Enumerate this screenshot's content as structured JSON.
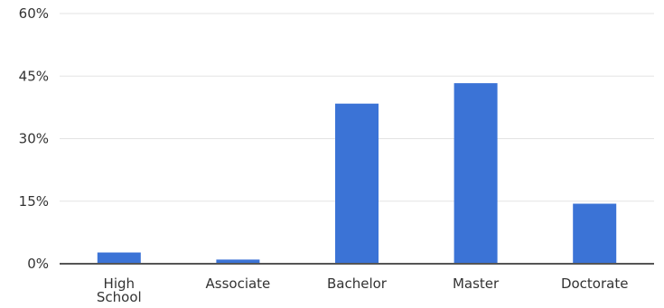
{
  "chart_data": {
    "type": "bar",
    "title": "",
    "xlabel": "",
    "ylabel": "",
    "categories": [
      [
        "High",
        "School"
      ],
      [
        "Associate"
      ],
      [
        "Bachelor"
      ],
      [
        "Master"
      ],
      [
        "Doctorate"
      ]
    ],
    "values": [
      2.7,
      1.0,
      38.4,
      43.3,
      14.4
    ],
    "ylim": [
      0,
      60
    ],
    "yticks": [
      "0%",
      "15%",
      "30%",
      "45%",
      "60%"
    ],
    "ytick_values": [
      0,
      15,
      30,
      45,
      60
    ],
    "grid": true,
    "bar_color": "#3b73d6",
    "grid_color": "#e3e3e3",
    "axis_color": "#555555"
  }
}
